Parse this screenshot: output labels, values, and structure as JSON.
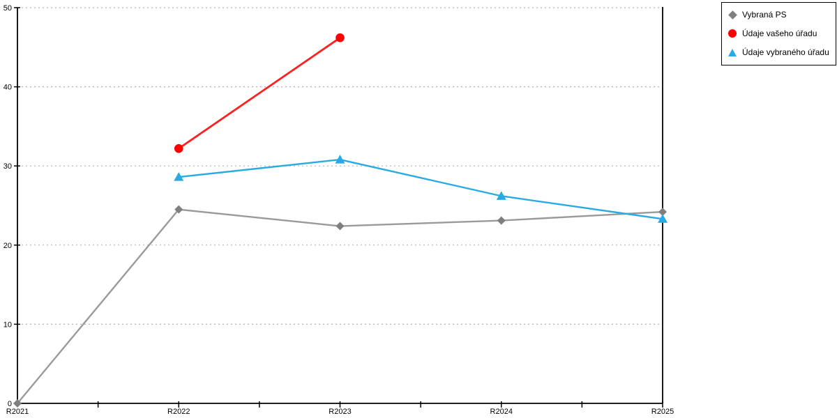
{
  "chart_data": {
    "type": "line",
    "title": "",
    "xlabel": "",
    "ylabel": "",
    "categories": [
      "R2021",
      "R2022",
      "R2023",
      "R2024",
      "R2025"
    ],
    "series": [
      {
        "name": "Vybraná PS",
        "marker": "diamond",
        "line_color": "#9a9a9a",
        "marker_color": "#7f7f7f",
        "values": [
          0,
          24.5,
          22.4,
          23.1,
          24.2
        ]
      },
      {
        "name": "Údaje vašeho úřadu",
        "marker": "circle",
        "line_color": "#ff2020",
        "marker_color": "#ff0000",
        "values": [
          null,
          32.2,
          46.2,
          null,
          null
        ]
      },
      {
        "name": "Údaje vybraného úřadu",
        "marker": "triangle",
        "line_color": "#29abe2",
        "marker_color": "#29abe2",
        "values": [
          null,
          28.6,
          30.8,
          26.2,
          23.3
        ]
      }
    ],
    "ylim": [
      0,
      50
    ],
    "yticks": [
      0,
      10,
      20,
      30,
      40,
      50
    ],
    "grid": "horizontal-dotted",
    "grid_color": "#b3b3b3",
    "axis_color": "#000000",
    "legend_position": "top-right"
  }
}
